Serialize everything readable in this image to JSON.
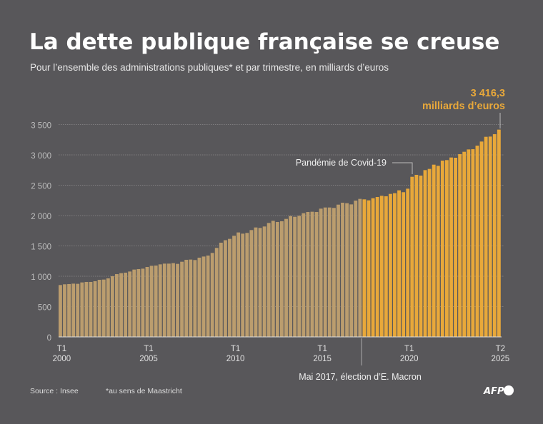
{
  "title": "La dette publique française se creuse",
  "subtitle": "Pour l’ensemble des administrations publiques* et par trimestre, en milliards d’euros",
  "source": "Source : Insee",
  "footnote": "*au sens de Maastricht",
  "logo": "AFP",
  "colors": {
    "background": "#58575a",
    "before_macron": "#bb9d6e",
    "after_macron": "#e8a83a"
  },
  "chart_data": {
    "type": "bar",
    "title": "La dette publique française se creuse",
    "ylabel": "",
    "xlabel": "",
    "ylim": [
      0,
      3500
    ],
    "grid": true,
    "yticks": [
      0,
      500,
      1000,
      1500,
      2000,
      2500,
      3000,
      3500
    ],
    "ytick_labels": [
      "0",
      "500",
      "1 000",
      "1 500",
      "2 000",
      "2 500",
      "3 000",
      "3 500"
    ],
    "period": "T1 2000 – T2 2025 (quarterly)",
    "xtick_labels": [
      {
        "index": 0,
        "q": "T1",
        "year": "2000"
      },
      {
        "index": 20,
        "q": "T1",
        "year": "2005"
      },
      {
        "index": 40,
        "q": "T1",
        "year": "2010"
      },
      {
        "index": 60,
        "q": "T1",
        "year": "2015"
      },
      {
        "index": 80,
        "q": "T1",
        "year": "2020"
      },
      {
        "index": 101,
        "q": "T2",
        "year": "2025"
      }
    ],
    "values": [
      855,
      867,
      871,
      878,
      875,
      898,
      906,
      906,
      918,
      941,
      945,
      965,
      1000,
      1035,
      1051,
      1059,
      1078,
      1110,
      1118,
      1125,
      1153,
      1172,
      1176,
      1196,
      1208,
      1208,
      1216,
      1204,
      1239,
      1271,
      1275,
      1267,
      1306,
      1325,
      1341,
      1384,
      1467,
      1553,
      1594,
      1616,
      1667,
      1722,
      1702,
      1714,
      1761,
      1804,
      1796,
      1820,
      1878,
      1914,
      1894,
      1906,
      1945,
      1992,
      1980,
      1996,
      2039,
      2059,
      2063,
      2059,
      2114,
      2133,
      2133,
      2126,
      2180,
      2212,
      2204,
      2184,
      2247,
      2275,
      2267,
      2251,
      2286,
      2306,
      2326,
      2318,
      2357,
      2369,
      2416,
      2385,
      2443,
      2639,
      2671,
      2659,
      2749,
      2769,
      2839,
      2820,
      2906,
      2914,
      2957,
      2953,
      3012,
      3051,
      3090,
      3094,
      3153,
      3220,
      3298,
      3302,
      3341,
      3416.3
    ],
    "highlight_from_index": 70,
    "annotations": {
      "macron": {
        "text": "Mai 2017, élection d’E. Macron",
        "index": 70
      },
      "covid": {
        "text": "Pandémie de Covid-19",
        "index": 81
      },
      "last_value": {
        "value": "3 416,3",
        "unit": "milliards d’euros",
        "index": 101
      }
    }
  }
}
